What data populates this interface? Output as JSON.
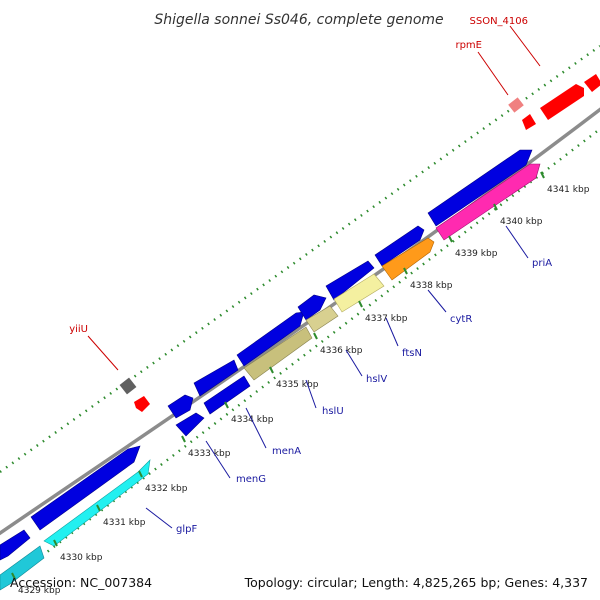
{
  "title": "Shigella sonnei Ss046, complete genome",
  "footer": {
    "accession": "Accession: NC_007384",
    "summary": "Topology: circular; Length: 4,825,265 bp; Genes: 4,337"
  },
  "colors": {
    "background": "#ffffff",
    "backbone": "#8c8c8c",
    "forward_strand": "#0000e0",
    "reverse_strand": "#ff0000",
    "tick_mark": "#2e8b2e",
    "label_forward": "#1a1aa0",
    "label_reverse": "#cc0000"
  },
  "ticks": [
    "4329 kbp",
    "4330 kbp",
    "4331 kbp",
    "4332 kbp",
    "4333 kbp",
    "4334 kbp",
    "4335 kbp",
    "4336 kbp",
    "4337 kbp",
    "4338 kbp",
    "4339 kbp",
    "4340 kbp",
    "4341 kbp"
  ],
  "gene_labels": [
    {
      "name": "glpF",
      "strand": "forward"
    },
    {
      "name": "menG",
      "strand": "forward"
    },
    {
      "name": "menA",
      "strand": "forward"
    },
    {
      "name": "hslU",
      "strand": "forward"
    },
    {
      "name": "hslV",
      "strand": "forward"
    },
    {
      "name": "ftsN",
      "strand": "forward"
    },
    {
      "name": "cytR",
      "strand": "forward"
    },
    {
      "name": "priA",
      "strand": "forward"
    },
    {
      "name": "yiiU",
      "strand": "reverse"
    },
    {
      "name": "rpmE",
      "strand": "reverse"
    },
    {
      "name": "SSON_4106",
      "strand": "reverse"
    }
  ]
}
